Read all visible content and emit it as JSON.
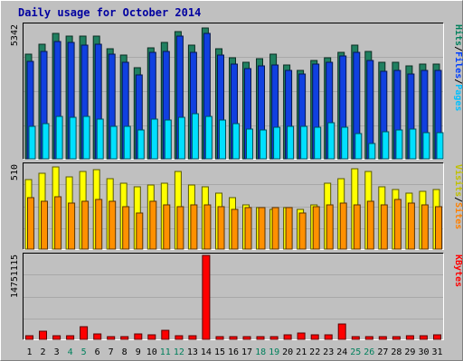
{
  "chart_data": {
    "type": "bar",
    "title": "Daily usage for October 2014",
    "categories": [
      "1",
      "2",
      "3",
      "4",
      "5",
      "6",
      "7",
      "8",
      "9",
      "10",
      "11",
      "12",
      "13",
      "14",
      "15",
      "16",
      "17",
      "18",
      "19",
      "20",
      "21",
      "22",
      "23",
      "24",
      "25",
      "26",
      "27",
      "28",
      "29",
      "30",
      "31"
    ],
    "weekend_days": [
      "4",
      "5",
      "11",
      "12",
      "18",
      "19",
      "25",
      "26"
    ],
    "panels": [
      {
        "id": "top",
        "max_label": "5342",
        "ylim": [
          0,
          5342
        ],
        "legend": [
          {
            "text": "Hits",
            "color": "#00805c"
          },
          {
            "text": "/",
            "color": "#000000"
          },
          {
            "text": "Files",
            "color": "#0040ff"
          },
          {
            "text": "/",
            "color": "#000000"
          },
          {
            "text": "Pages",
            "color": "#00c0ff"
          }
        ],
        "series": [
          {
            "name": "Hits",
            "color": "#208060",
            "values": [
              4200,
              4600,
              5000,
              4900,
              4900,
              4900,
              4400,
              4150,
              3650,
              4450,
              4650,
              5100,
              4550,
              5250,
              4400,
              4050,
              3850,
              4000,
              4200,
              3750,
              3550,
              3950,
              4050,
              4250,
              4550,
              4300,
              3850,
              3850,
              3700,
              3800,
              3800
            ]
          },
          {
            "name": "Files",
            "color": "#1040e0",
            "values": [
              3900,
              4300,
              4700,
              4650,
              4550,
              4600,
              4200,
              3850,
              3350,
              4250,
              4300,
              4900,
              4250,
              5000,
              4150,
              3800,
              3600,
              3700,
              3750,
              3550,
              3400,
              3800,
              3850,
              4100,
              4250,
              3950,
              3500,
              3550,
              3400,
              3550,
              3550
            ]
          },
          {
            "name": "Pages",
            "color": "#00e0ff",
            "values": [
              1300,
              1400,
              1700,
              1650,
              1700,
              1600,
              1300,
              1300,
              1150,
              1600,
              1550,
              1650,
              1800,
              1700,
              1550,
              1400,
              1200,
              1150,
              1250,
              1300,
              1300,
              1250,
              1450,
              1250,
              1000,
              600,
              1100,
              1150,
              1200,
              1050,
              1050
            ]
          }
        ]
      },
      {
        "id": "mid",
        "max_label": "510",
        "ylim": [
          0,
          510
        ],
        "legend": [
          {
            "text": "Visits",
            "color": "#c0c000"
          },
          {
            "text": "/",
            "color": "#000000"
          },
          {
            "text": "Sites",
            "color": "#ff8000"
          }
        ],
        "series": [
          {
            "name": "Visits",
            "color": "#ffff00",
            "values": [
              420,
              460,
              500,
              440,
              470,
              480,
              430,
              400,
              380,
              390,
              400,
              470,
              390,
              380,
              340,
              310,
              270,
              250,
              240,
              250,
              240,
              270,
              400,
              430,
              490,
              470,
              380,
              360,
              340,
              350,
              360
            ]
          },
          {
            "name": "Sites",
            "color": "#ff9000",
            "values": [
              310,
              290,
              320,
              280,
              290,
              300,
              290,
              260,
              220,
              290,
              270,
              260,
              270,
              270,
              260,
              240,
              250,
              250,
              250,
              250,
              220,
              260,
              270,
              280,
              270,
              290,
              270,
              300,
              280,
              270,
              260
            ]
          }
        ]
      },
      {
        "id": "bottom",
        "max_label": "14751115",
        "ylim": [
          0,
          14751115
        ],
        "legend": [
          {
            "text": "KBytes",
            "color": "#ff0000"
          }
        ],
        "series": [
          {
            "name": "KBytes",
            "color": "#ff0000",
            "values": [
              620000,
              1500000,
              690000,
              690000,
              2240000,
              900000,
              520000,
              520000,
              900000,
              760000,
              1600000,
              690000,
              690000,
              14751115,
              520000,
              430000,
              430000,
              430000,
              430000,
              860000,
              1100000,
              860000,
              860000,
              2640000,
              430000,
              430000,
              430000,
              430000,
              690000,
              690000,
              860000
            ]
          }
        ]
      }
    ]
  }
}
